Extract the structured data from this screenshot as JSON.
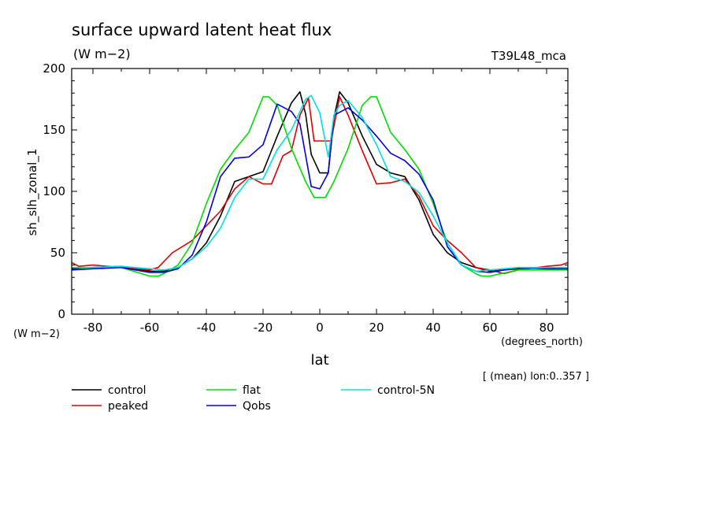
{
  "chart_data": {
    "type": "line",
    "title": "surface upward latent heat flux",
    "units": "(W m−2)",
    "experiment": "T39L48_mca",
    "ylabel": "sh_slh_zonal_1",
    "y_units": "(W m−2)",
    "xlabel": "lat",
    "x_units": "(degrees_north)",
    "note": "[ (mean) lon:0..357 ]",
    "xlim": [
      -87.5,
      87.5
    ],
    "ylim": [
      0,
      200
    ],
    "xticks": [
      -80,
      -60,
      -40,
      -20,
      0,
      20,
      40,
      60,
      80
    ],
    "yticks": [
      0,
      50,
      100,
      150,
      200
    ],
    "grid": false,
    "legend_position": "bottom-left",
    "series": [
      {
        "name": "control",
        "color": "#000000",
        "x": [
          -87.5,
          -80,
          -70,
          -60,
          -55,
          -50,
          -45,
          -40,
          -35,
          -30,
          -25,
          -20,
          -15,
          -10,
          -7,
          -5,
          -3,
          0,
          3,
          5,
          7,
          10,
          15,
          20,
          25,
          30,
          35,
          40,
          45,
          50,
          55,
          60,
          70,
          80,
          87.5
        ],
        "y": [
          37,
          38,
          39,
          35,
          35,
          38,
          45,
          58,
          80,
          108,
          112,
          116,
          145,
          172,
          181,
          163,
          130,
          115,
          115,
          160,
          181,
          172,
          145,
          122,
          115,
          112,
          93,
          65,
          50,
          42,
          38,
          35,
          37,
          38,
          37
        ]
      },
      {
        "name": "peaked",
        "color": "#dd0000",
        "x": [
          -87.5,
          -85,
          -80,
          -70,
          -60,
          -57,
          -52,
          -45,
          -40,
          -35,
          -30,
          -25,
          -20,
          -17,
          -13,
          -10,
          -7,
          -4,
          -2,
          0,
          2,
          4,
          7,
          10,
          15,
          20,
          25,
          30,
          35,
          40,
          45,
          50,
          55,
          60,
          65,
          70,
          80,
          85,
          87.5
        ],
        "y": [
          42,
          39,
          40,
          38,
          36,
          38,
          50,
          60,
          72,
          84,
          102,
          112,
          106,
          106,
          129,
          133,
          162,
          176,
          141,
          141,
          141,
          141,
          177,
          162,
          133,
          106,
          107,
          110,
          96,
          72,
          60,
          50,
          38,
          36,
          33,
          36,
          39,
          40,
          42
        ]
      },
      {
        "name": "flat",
        "color": "#00dd00",
        "x": [
          -87.5,
          -80,
          -70,
          -60,
          -57,
          -55,
          -50,
          -45,
          -40,
          -35,
          -30,
          -25,
          -20,
          -18,
          -15,
          -10,
          -5,
          -2,
          0,
          2,
          5,
          10,
          15,
          18,
          20,
          25,
          30,
          35,
          40,
          45,
          50,
          55,
          57,
          60,
          70,
          80,
          87.5
        ],
        "y": [
          36,
          38,
          38,
          31,
          31,
          33,
          40,
          58,
          90,
          118,
          134,
          148,
          177,
          177,
          170,
          135,
          108,
          95,
          95,
          95,
          108,
          135,
          170,
          177,
          177,
          148,
          134,
          118,
          90,
          58,
          40,
          33,
          31,
          31,
          36,
          36,
          36
        ]
      },
      {
        "name": "Qobs",
        "color": "#0000dd",
        "x": [
          -87.5,
          -80,
          -70,
          -60,
          -55,
          -50,
          -45,
          -40,
          -35,
          -30,
          -25,
          -20,
          -15,
          -10,
          -7,
          -3,
          0,
          3,
          5,
          10,
          15,
          20,
          25,
          30,
          35,
          40,
          45,
          50,
          55,
          60,
          70,
          80,
          87.5
        ],
        "y": [
          36,
          37,
          38,
          34,
          34,
          37,
          48,
          75,
          112,
          127,
          128,
          138,
          171,
          165,
          155,
          104,
          102,
          115,
          162,
          168,
          158,
          145,
          131,
          125,
          114,
          93,
          55,
          40,
          35,
          34,
          38,
          37,
          37
        ]
      },
      {
        "name": "control-5N",
        "color": "#00e0e0",
        "x": [
          -87.5,
          -80,
          -70,
          -60,
          -55,
          -50,
          -45,
          -40,
          -35,
          -30,
          -25,
          -20,
          -15,
          -10,
          -5,
          -3,
          0,
          3,
          5,
          7,
          10,
          15,
          20,
          25,
          30,
          35,
          40,
          45,
          50,
          55,
          60,
          70,
          80,
          87.5
        ],
        "y": [
          38,
          38,
          39,
          37,
          36,
          38,
          45,
          55,
          70,
          95,
          110,
          110,
          134,
          150,
          175,
          178,
          164,
          128,
          162,
          170,
          174,
          160,
          138,
          112,
          108,
          99,
          80,
          58,
          40,
          35,
          36,
          38,
          38,
          38
        ]
      }
    ]
  }
}
